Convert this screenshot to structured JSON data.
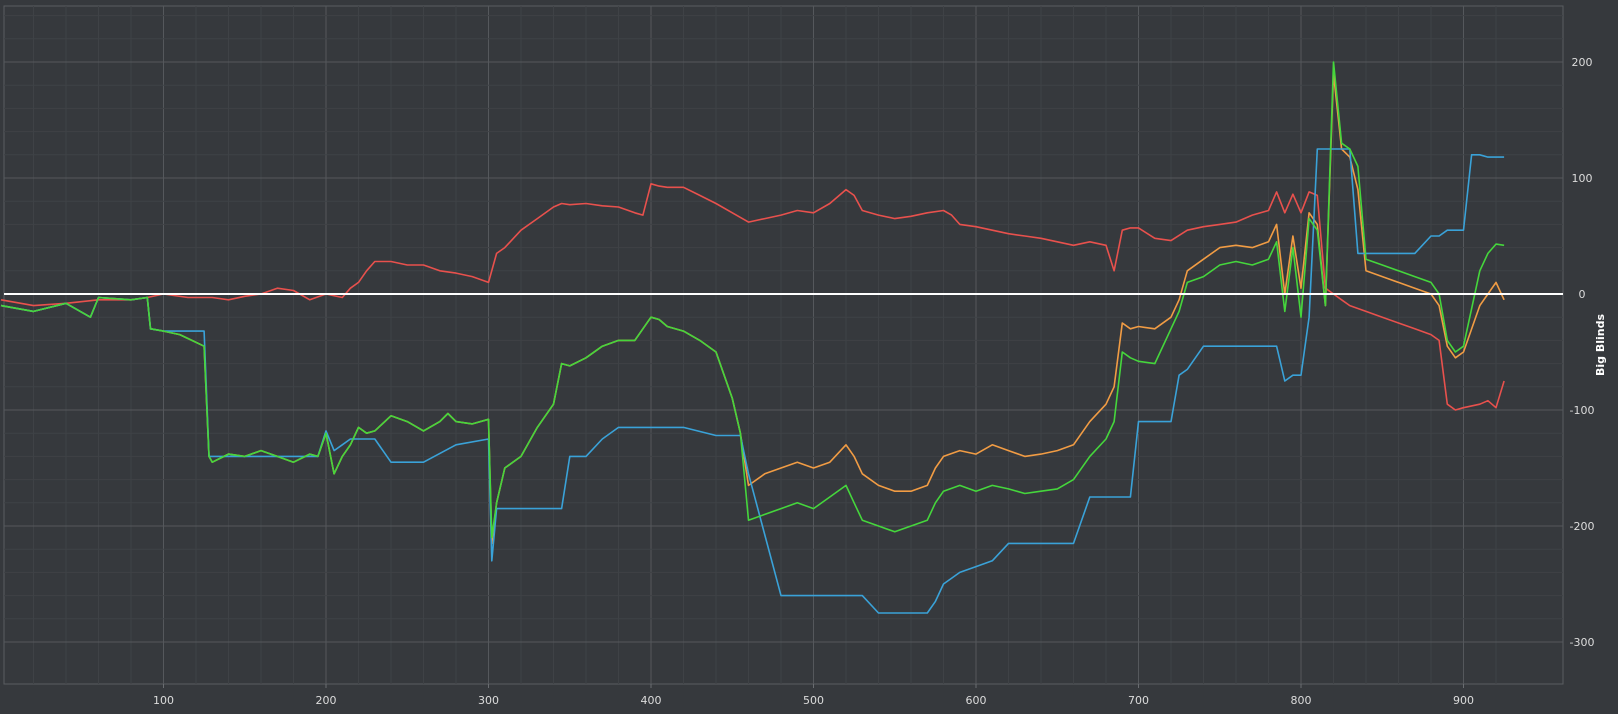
{
  "chart_data": {
    "type": "line",
    "title": "",
    "xlabel": "",
    "ylabel": "Big Blinds",
    "xlim": [
      0,
      930
    ],
    "ylim": [
      -320,
      250
    ],
    "grid": true,
    "y_axis_side": "right",
    "x_ticks": [
      "100",
      "200",
      "300",
      "400",
      "500",
      "600",
      "700",
      "800",
      "900"
    ],
    "y_ticks": [
      "200",
      "100",
      "0",
      "-100",
      "-200",
      "-300"
    ],
    "zero_line_color": "#ffffff",
    "series": [
      {
        "color": "#e8514d",
        "x": [
          0,
          20,
          40,
          60,
          80,
          90,
          100,
          115,
          130,
          140,
          150,
          160,
          170,
          180,
          190,
          200,
          210,
          215,
          220,
          225,
          230,
          240,
          250,
          260,
          270,
          280,
          290,
          300,
          305,
          310,
          320,
          330,
          340,
          345,
          350,
          360,
          370,
          380,
          390,
          395,
          400,
          405,
          410,
          420,
          430,
          440,
          450,
          460,
          470,
          480,
          490,
          500,
          510,
          520,
          525,
          530,
          540,
          550,
          560,
          570,
          580,
          585,
          590,
          600,
          610,
          620,
          630,
          640,
          650,
          660,
          670,
          680,
          685,
          690,
          695,
          700,
          710,
          720,
          730,
          740,
          750,
          760,
          770,
          780,
          785,
          790,
          795,
          800,
          805,
          810,
          815,
          820,
          825,
          830,
          840,
          850,
          860,
          870,
          880,
          885,
          890,
          895,
          900,
          910,
          915,
          920,
          925
        ],
        "values": [
          -5,
          -10,
          -8,
          -5,
          -5,
          -3,
          0,
          -3,
          -3,
          -5,
          -2,
          0,
          5,
          3,
          -5,
          0,
          -3,
          5,
          10,
          20,
          28,
          28,
          25,
          25,
          20,
          18,
          15,
          10,
          35,
          40,
          55,
          65,
          75,
          78,
          77,
          78,
          76,
          75,
          70,
          68,
          95,
          93,
          92,
          92,
          85,
          78,
          70,
          62,
          65,
          68,
          72,
          70,
          78,
          90,
          85,
          72,
          68,
          65,
          67,
          70,
          72,
          68,
          60,
          58,
          55,
          52,
          50,
          48,
          45,
          42,
          45,
          42,
          20,
          55,
          57,
          57,
          48,
          46,
          55,
          58,
          60,
          62,
          68,
          72,
          88,
          70,
          86,
          70,
          88,
          85,
          5,
          0,
          -5,
          -10,
          -15,
          -20,
          -25,
          -30,
          -35,
          -40,
          -95,
          -100,
          -98,
          -95,
          -92,
          -98,
          -75
        ]
      },
      {
        "color": "#f19c44",
        "x": [
          0,
          20,
          40,
          55,
          60,
          80,
          90,
          92,
          100,
          110,
          125,
          128,
          130,
          140,
          150,
          160,
          170,
          180,
          190,
          195,
          200,
          205,
          210,
          215,
          220,
          225,
          230,
          240,
          250,
          260,
          270,
          275,
          280,
          290,
          300,
          302,
          305,
          310,
          320,
          330,
          340,
          345,
          350,
          360,
          370,
          380,
          390,
          395,
          400,
          405,
          410,
          420,
          430,
          440,
          450,
          455,
          460,
          470,
          480,
          490,
          500,
          510,
          520,
          525,
          530,
          540,
          550,
          560,
          570,
          575,
          580,
          590,
          600,
          610,
          620,
          630,
          640,
          650,
          660,
          670,
          680,
          685,
          690,
          695,
          700,
          710,
          720,
          725,
          730,
          740,
          750,
          760,
          770,
          780,
          785,
          790,
          795,
          800,
          805,
          810,
          815,
          820,
          825,
          830,
          835,
          840,
          850,
          860,
          870,
          880,
          885,
          890,
          895,
          900,
          910,
          915,
          920,
          925
        ],
        "values": [
          -10,
          -15,
          -8,
          -20,
          -3,
          -5,
          -3,
          -30,
          -32,
          -35,
          -45,
          -140,
          -145,
          -138,
          -140,
          -135,
          -140,
          -145,
          -138,
          -140,
          -120,
          -155,
          -140,
          -130,
          -115,
          -120,
          -118,
          -105,
          -110,
          -118,
          -110,
          -103,
          -110,
          -112,
          -108,
          -215,
          -180,
          -150,
          -140,
          -115,
          -95,
          -60,
          -62,
          -55,
          -45,
          -40,
          -40,
          -30,
          -20,
          -22,
          -28,
          -32,
          -40,
          -50,
          -90,
          -120,
          -165,
          -155,
          -150,
          -145,
          -150,
          -145,
          -130,
          -140,
          -155,
          -165,
          -170,
          -170,
          -165,
          -150,
          -140,
          -135,
          -138,
          -130,
          -135,
          -140,
          -138,
          -135,
          -130,
          -110,
          -95,
          -80,
          -25,
          -30,
          -28,
          -30,
          -20,
          -5,
          20,
          30,
          40,
          42,
          40,
          45,
          60,
          0,
          50,
          5,
          70,
          60,
          -10,
          190,
          125,
          118,
          90,
          20,
          15,
          10,
          5,
          0,
          -10,
          -45,
          -55,
          -50,
          -10,
          0,
          10,
          -5
        ]
      },
      {
        "color": "#3aa2d8",
        "x": [
          0,
          20,
          40,
          55,
          60,
          80,
          90,
          92,
          100,
          110,
          125,
          128,
          130,
          150,
          180,
          195,
          200,
          205,
          210,
          215,
          230,
          240,
          260,
          280,
          300,
          302,
          305,
          310,
          330,
          345,
          350,
          360,
          370,
          380,
          400,
          420,
          440,
          450,
          455,
          460,
          480,
          500,
          520,
          530,
          540,
          560,
          570,
          575,
          580,
          590,
          600,
          610,
          620,
          640,
          660,
          670,
          680,
          690,
          695,
          700,
          720,
          725,
          730,
          740,
          760,
          780,
          785,
          790,
          795,
          800,
          805,
          810,
          815,
          820,
          825,
          830,
          835,
          840,
          860,
          870,
          880,
          885,
          890,
          895,
          900,
          905,
          910,
          915,
          920,
          925
        ],
        "values": [
          -10,
          -15,
          -8,
          -20,
          -3,
          -5,
          -3,
          -30,
          -32,
          -32,
          -32,
          -140,
          -140,
          -140,
          -140,
          -140,
          -118,
          -135,
          -130,
          -125,
          -125,
          -145,
          -145,
          -130,
          -125,
          -230,
          -185,
          -185,
          -185,
          -185,
          -140,
          -140,
          -125,
          -115,
          -115,
          -115,
          -122,
          -122,
          -122,
          -155,
          -260,
          -260,
          -260,
          -260,
          -275,
          -275,
          -275,
          -265,
          -250,
          -240,
          -235,
          -230,
          -215,
          -215,
          -215,
          -175,
          -175,
          -175,
          -175,
          -110,
          -110,
          -70,
          -65,
          -45,
          -45,
          -45,
          -45,
          -75,
          -70,
          -70,
          -20,
          125,
          125,
          125,
          125,
          125,
          35,
          35,
          35,
          35,
          50,
          50,
          55,
          55,
          55,
          120,
          120,
          118,
          118,
          118
        ]
      },
      {
        "color": "#45d63c",
        "x": [
          0,
          20,
          40,
          55,
          60,
          80,
          90,
          92,
          100,
          110,
          125,
          128,
          130,
          140,
          150,
          160,
          170,
          180,
          190,
          195,
          200,
          205,
          210,
          215,
          220,
          225,
          230,
          240,
          250,
          260,
          270,
          275,
          280,
          290,
          300,
          302,
          305,
          310,
          320,
          330,
          340,
          345,
          350,
          360,
          370,
          380,
          390,
          395,
          400,
          405,
          410,
          420,
          430,
          440,
          450,
          455,
          460,
          470,
          480,
          490,
          500,
          510,
          520,
          525,
          530,
          540,
          550,
          560,
          570,
          575,
          580,
          590,
          600,
          610,
          620,
          630,
          640,
          650,
          660,
          670,
          680,
          685,
          690,
          695,
          700,
          710,
          720,
          725,
          730,
          740,
          750,
          760,
          770,
          780,
          785,
          790,
          795,
          800,
          805,
          810,
          815,
          820,
          825,
          830,
          835,
          840,
          850,
          860,
          870,
          880,
          885,
          890,
          895,
          900,
          910,
          915,
          920,
          925
        ],
        "values": [
          -10,
          -15,
          -8,
          -20,
          -3,
          -5,
          -3,
          -30,
          -32,
          -35,
          -45,
          -140,
          -145,
          -138,
          -140,
          -135,
          -140,
          -145,
          -138,
          -140,
          -120,
          -155,
          -140,
          -130,
          -115,
          -120,
          -118,
          -105,
          -110,
          -118,
          -110,
          -103,
          -110,
          -112,
          -108,
          -210,
          -180,
          -150,
          -140,
          -115,
          -95,
          -60,
          -62,
          -55,
          -45,
          -40,
          -40,
          -30,
          -20,
          -22,
          -28,
          -32,
          -40,
          -50,
          -90,
          -120,
          -195,
          -190,
          -185,
          -180,
          -185,
          -175,
          -165,
          -180,
          -195,
          -200,
          -205,
          -200,
          -195,
          -180,
          -170,
          -165,
          -170,
          -165,
          -168,
          -172,
          -170,
          -168,
          -160,
          -140,
          -125,
          -110,
          -50,
          -55,
          -58,
          -60,
          -30,
          -15,
          10,
          15,
          25,
          28,
          25,
          30,
          45,
          -15,
          40,
          -20,
          65,
          55,
          -10,
          200,
          130,
          125,
          110,
          30,
          25,
          20,
          15,
          10,
          0,
          -40,
          -50,
          -45,
          20,
          35,
          43,
          42
        ]
      }
    ]
  }
}
